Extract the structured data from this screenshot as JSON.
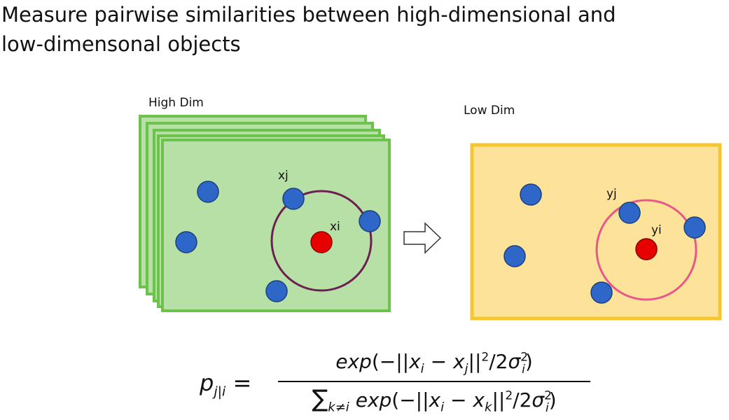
{
  "title": {
    "line1": "Measure pairwise similarities between high-dimensional and",
    "line2": "low-dimensonal objects"
  },
  "high_dim": {
    "label": "High Dim",
    "point_j_label": "xj",
    "point_i_label": "xi"
  },
  "low_dim": {
    "label": "Low Dim",
    "point_j_label": "yj",
    "point_i_label": "yi"
  },
  "formula": {
    "lhs": "p_{j|i} =",
    "numerator": "exp(−||x_i − x_j||^2/2σ_i^2)",
    "denominator": "∑_{k≠i} exp(−||x_i − x_k||^2/2σ_i^2)"
  },
  "colors": {
    "high_dim_fill": "#b7e0a6",
    "high_dim_border": "#6cc24a",
    "low_dim_fill": "#fde39a",
    "low_dim_border": "#f5c72e",
    "point_blue": "#2f67c9",
    "point_red": "#e60000",
    "high_dim_circle": "#6e1f52",
    "low_dim_circle": "#e8578a"
  }
}
